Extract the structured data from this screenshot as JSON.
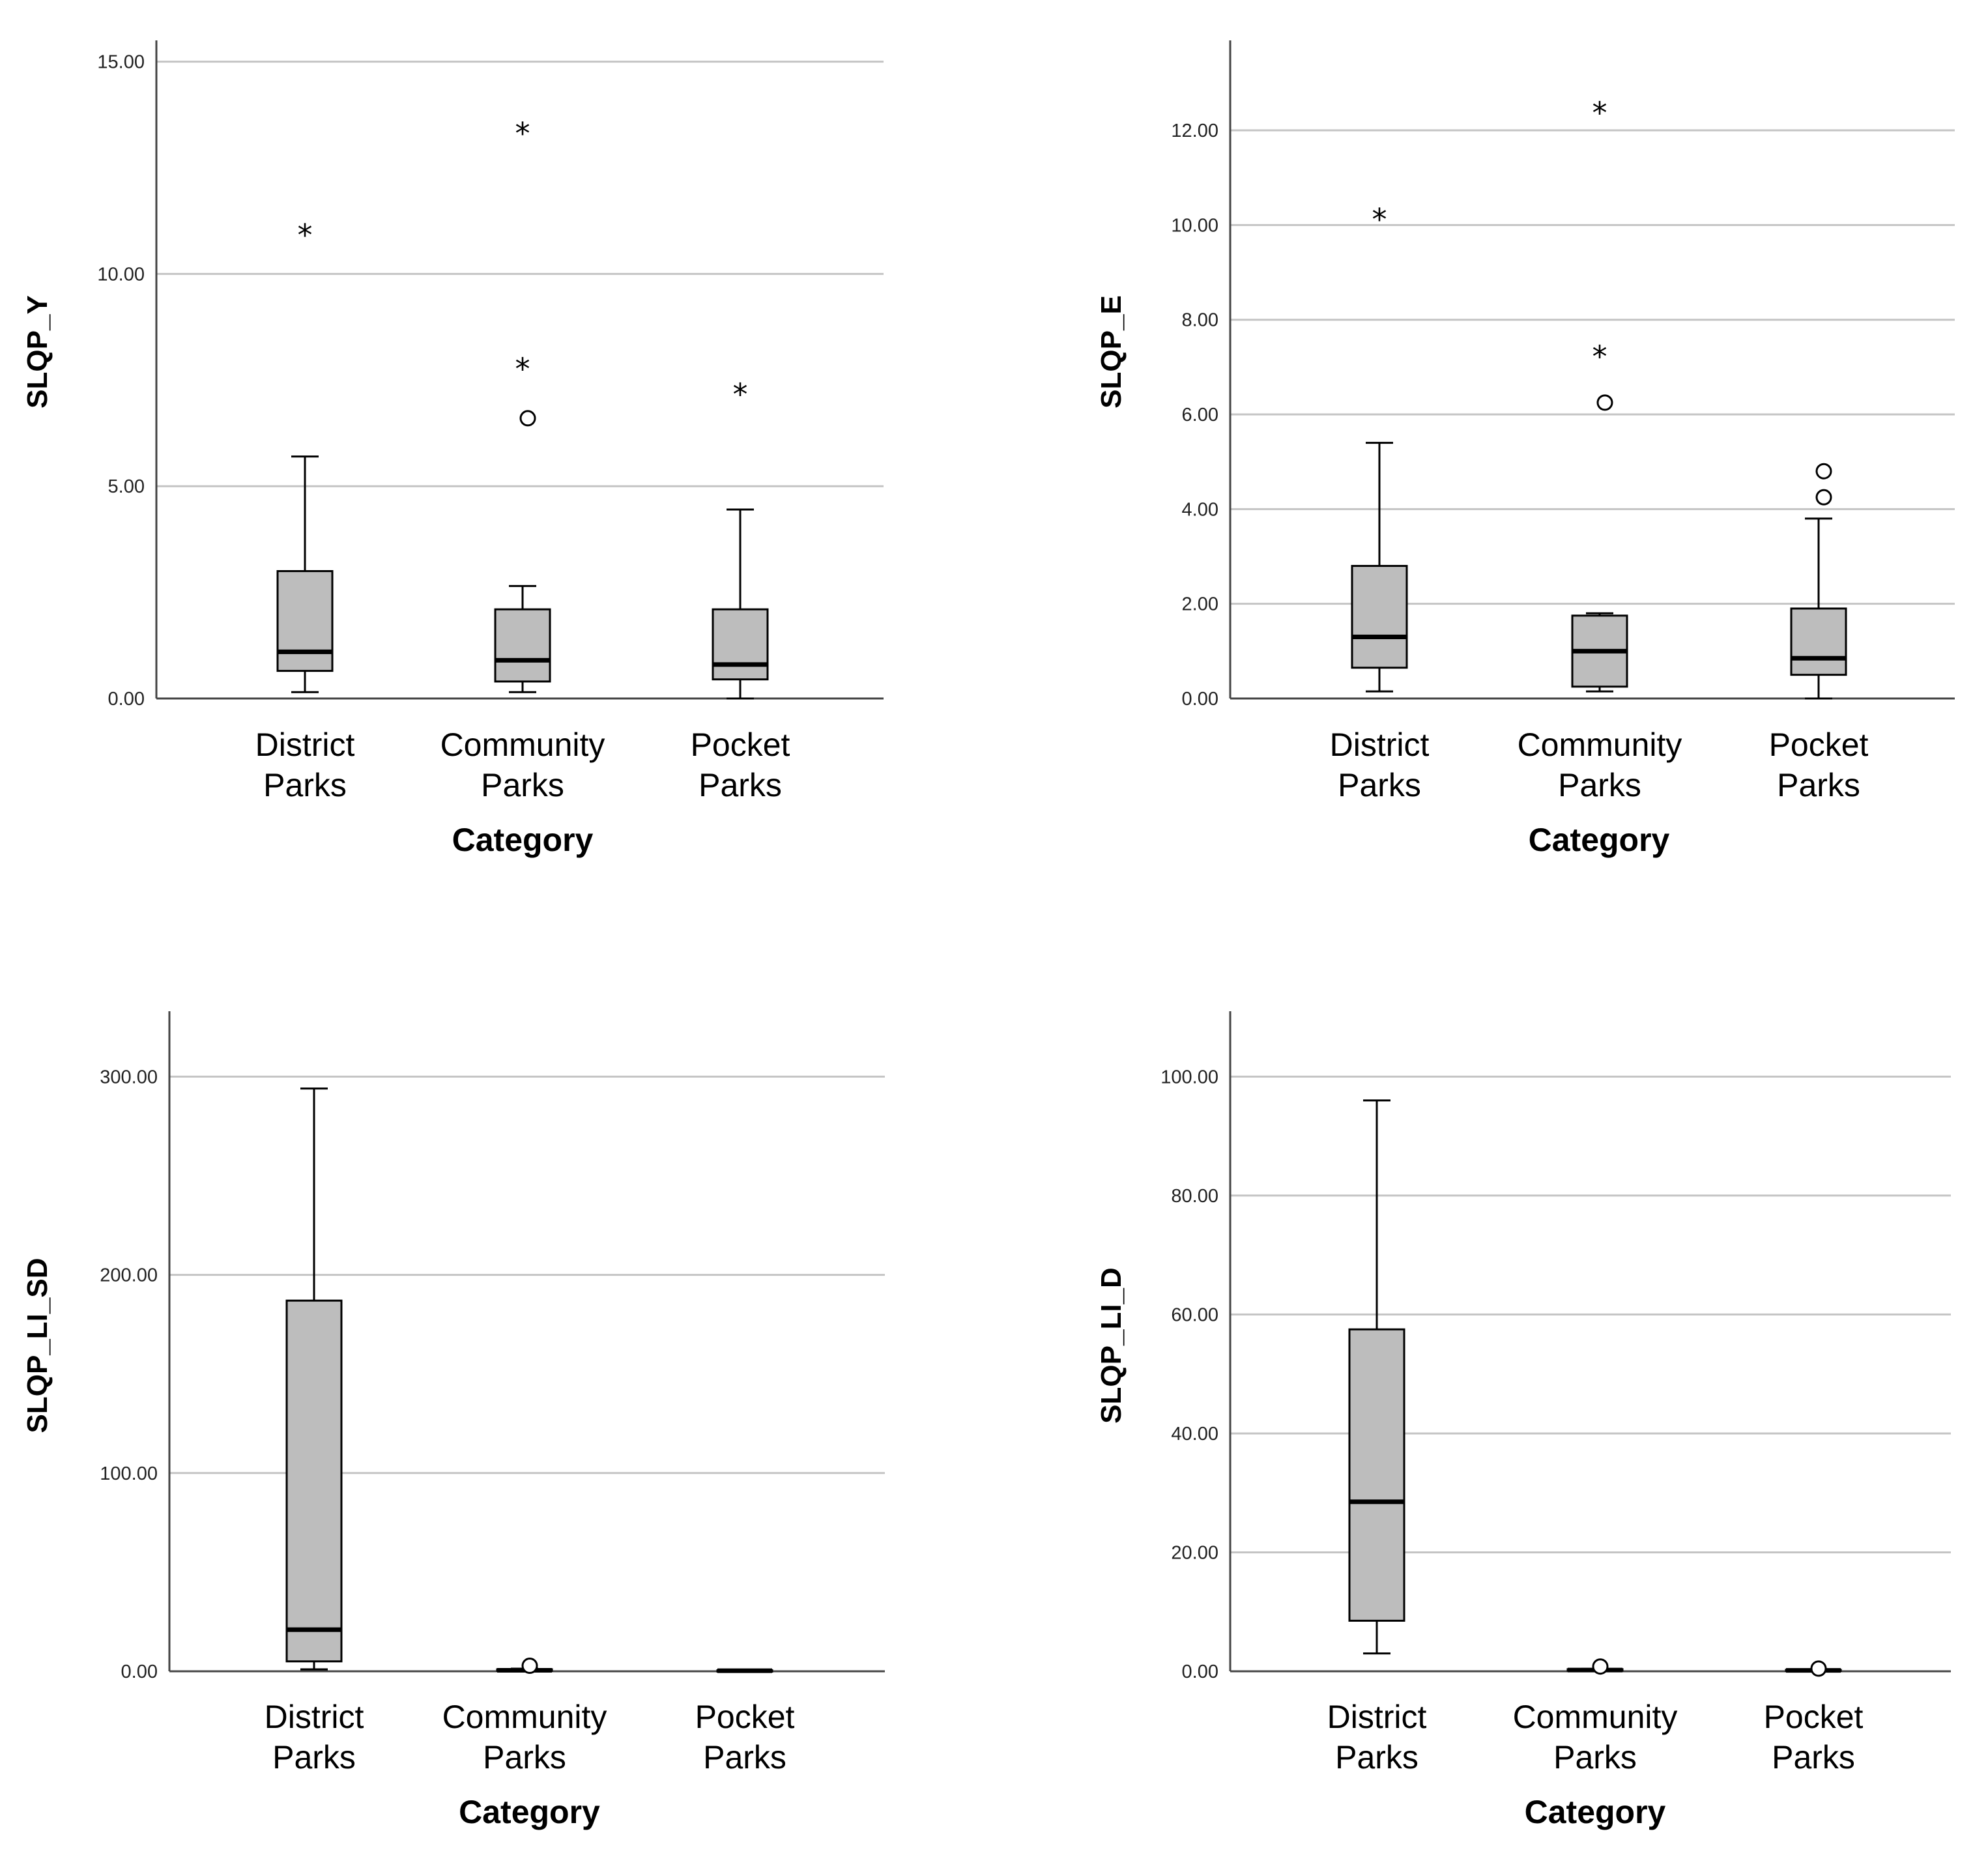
{
  "colors": {
    "box_fill": "#bdbdbd",
    "grid": "#c4c4c4",
    "axis": "#444444",
    "ink": "#000000"
  },
  "chart_data": [
    {
      "type": "boxplot",
      "ylabel": "SLQP_Y",
      "xlabel": "Category",
      "ylim": [
        0,
        15.5
      ],
      "yticks": [
        0,
        5,
        10,
        15
      ],
      "tick_labels": [
        "0.00",
        "5.00",
        "10.00",
        "15.00"
      ],
      "categories": [
        [
          "District",
          "Parks"
        ],
        [
          "Community",
          "Parks"
        ],
        [
          "Pocket",
          "Parks"
        ]
      ],
      "boxes": [
        {
          "whisker_low": 0.15,
          "q1": 0.65,
          "median": 1.1,
          "q3": 3.0,
          "whisker_high": 5.7,
          "outliers": [],
          "extremes": [
            11.0
          ]
        },
        {
          "whisker_low": 0.15,
          "q1": 0.4,
          "median": 0.9,
          "q3": 2.1,
          "whisker_high": 2.65,
          "outliers": [
            6.6
          ],
          "extremes": [
            7.85,
            13.4
          ]
        },
        {
          "whisker_low": 0.0,
          "q1": 0.45,
          "median": 0.8,
          "q3": 2.1,
          "whisker_high": 4.45,
          "outliers": [],
          "extremes": [
            7.25
          ]
        }
      ]
    },
    {
      "type": "boxplot",
      "ylabel": "SLQP_E",
      "xlabel": "Category",
      "ylim": [
        0,
        13.9
      ],
      "yticks": [
        0,
        2,
        4,
        6,
        8,
        10,
        12
      ],
      "tick_labels": [
        "0.00",
        "2.00",
        "4.00",
        "6.00",
        "8.00",
        "10.00",
        "12.00"
      ],
      "categories": [
        [
          "District",
          "Parks"
        ],
        [
          "Community",
          "Parks"
        ],
        [
          "Pocket",
          "Parks"
        ]
      ],
      "boxes": [
        {
          "whisker_low": 0.15,
          "q1": 0.65,
          "median": 1.3,
          "q3": 2.8,
          "whisker_high": 5.4,
          "outliers": [],
          "extremes": [
            10.2
          ]
        },
        {
          "whisker_low": 0.15,
          "q1": 0.25,
          "median": 1.0,
          "q3": 1.75,
          "whisker_high": 1.8,
          "outliers": [
            6.25
          ],
          "extremes": [
            7.3,
            12.45
          ]
        },
        {
          "whisker_low": 0.0,
          "q1": 0.5,
          "median": 0.85,
          "q3": 1.9,
          "whisker_high": 3.8,
          "outliers": [
            4.25,
            4.8
          ],
          "extremes": []
        }
      ]
    },
    {
      "type": "boxplot",
      "ylabel": "SLQP_LI_SD",
      "xlabel": "Category",
      "ylim": [
        0,
        333
      ],
      "yticks": [
        0,
        100,
        200,
        300
      ],
      "tick_labels": [
        "0.00",
        "100.00",
        "200.00",
        "300.00"
      ],
      "categories": [
        [
          "District",
          "Parks"
        ],
        [
          "Community",
          "Parks"
        ],
        [
          "Pocket",
          "Parks"
        ]
      ],
      "boxes": [
        {
          "whisker_low": 1.0,
          "q1": 5.0,
          "median": 21.0,
          "q3": 187.0,
          "whisker_high": 294.0,
          "outliers": [],
          "extremes": []
        },
        {
          "whisker_low": 0.0,
          "q1": 0.2,
          "median": 0.5,
          "q3": 1.0,
          "whisker_high": 1.3,
          "outliers": [
            2.8
          ],
          "extremes": []
        },
        {
          "whisker_low": 0.0,
          "q1": 0.1,
          "median": 0.3,
          "q3": 0.5,
          "whisker_high": 0.6,
          "outliers": [],
          "extremes": []
        }
      ]
    },
    {
      "type": "boxplot",
      "ylabel": "SLQP_LI_D",
      "xlabel": "Category",
      "ylim": [
        0,
        111
      ],
      "yticks": [
        0,
        20,
        40,
        60,
        80,
        100
      ],
      "tick_labels": [
        "0.00",
        "20.00",
        "40.00",
        "60.00",
        "80.00",
        "100.00"
      ],
      "categories": [
        [
          "District",
          "Parks"
        ],
        [
          "Community",
          "Parks"
        ],
        [
          "Pocket",
          "Parks"
        ]
      ],
      "boxes": [
        {
          "whisker_low": 3.0,
          "q1": 8.5,
          "median": 28.5,
          "q3": 57.5,
          "whisker_high": 96.0,
          "outliers": [],
          "extremes": []
        },
        {
          "whisker_low": 0.0,
          "q1": 0.1,
          "median": 0.2,
          "q3": 0.35,
          "whisker_high": 0.4,
          "outliers": [
            0.8
          ],
          "extremes": []
        },
        {
          "whisker_low": 0.0,
          "q1": 0.05,
          "median": 0.15,
          "q3": 0.25,
          "whisker_high": 0.3,
          "outliers": [
            0.45
          ],
          "extremes": []
        }
      ]
    }
  ]
}
